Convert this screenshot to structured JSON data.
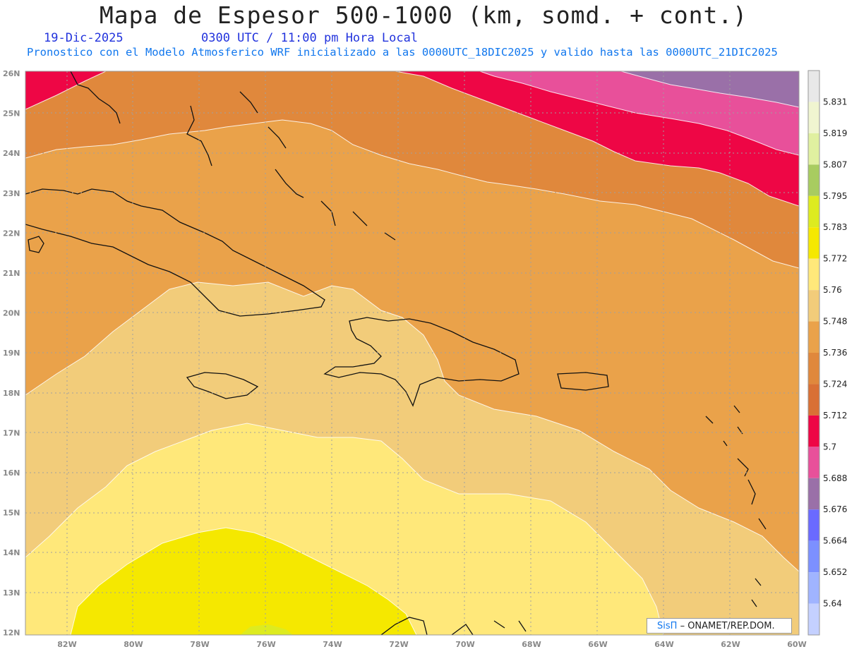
{
  "header": {
    "title": "Mapa de Espesor 500-1000 (km, somd. + cont.)",
    "date": "19-Dic-2025",
    "time": "0300 UTC / 11:00 pm Hora Local",
    "subtitle": "Pronostico con el Modelo Atmosferico WRF inicializado a las 0000UTC_18DIC2025 y valido hasta las  0000UTC_21DIC2025"
  },
  "axes": {
    "lat_ticks": [
      "26N",
      "25N",
      "24N",
      "23N",
      "22N",
      "21N",
      "20N",
      "19N",
      "18N",
      "17N",
      "16N",
      "15N",
      "14N",
      "13N",
      "12N"
    ],
    "lon_ticks": [
      "82W",
      "80W",
      "78W",
      "76W",
      "74W",
      "72W",
      "70W",
      "68W",
      "66W",
      "64W",
      "62W",
      "60W"
    ]
  },
  "colorbar": {
    "labels": [
      "5.831",
      "5.819",
      "5.807",
      "5.795",
      "5.783",
      "5.772",
      "5.76",
      "5.748",
      "5.736",
      "5.724",
      "5.712",
      "5.7",
      "5.688",
      "5.676",
      "5.664",
      "5.652",
      "5.64"
    ],
    "colors": [
      "#e8e8e8",
      "#f0f5d0",
      "#e0f0a0",
      "#a8cc60",
      "#ddeb20",
      "#f5e800",
      "#ffe87a",
      "#f2cc7a",
      "#eaa24a",
      "#e0883c",
      "#d97035",
      "#ee0645",
      "#e8509a",
      "#9a70a8",
      "#6a6aff",
      "#7c90ff",
      "#a0b4ff",
      "#c4d0ff"
    ]
  },
  "credit": {
    "sis": "SisΠ",
    "org": "– ONAMET/REP.DOM."
  }
}
